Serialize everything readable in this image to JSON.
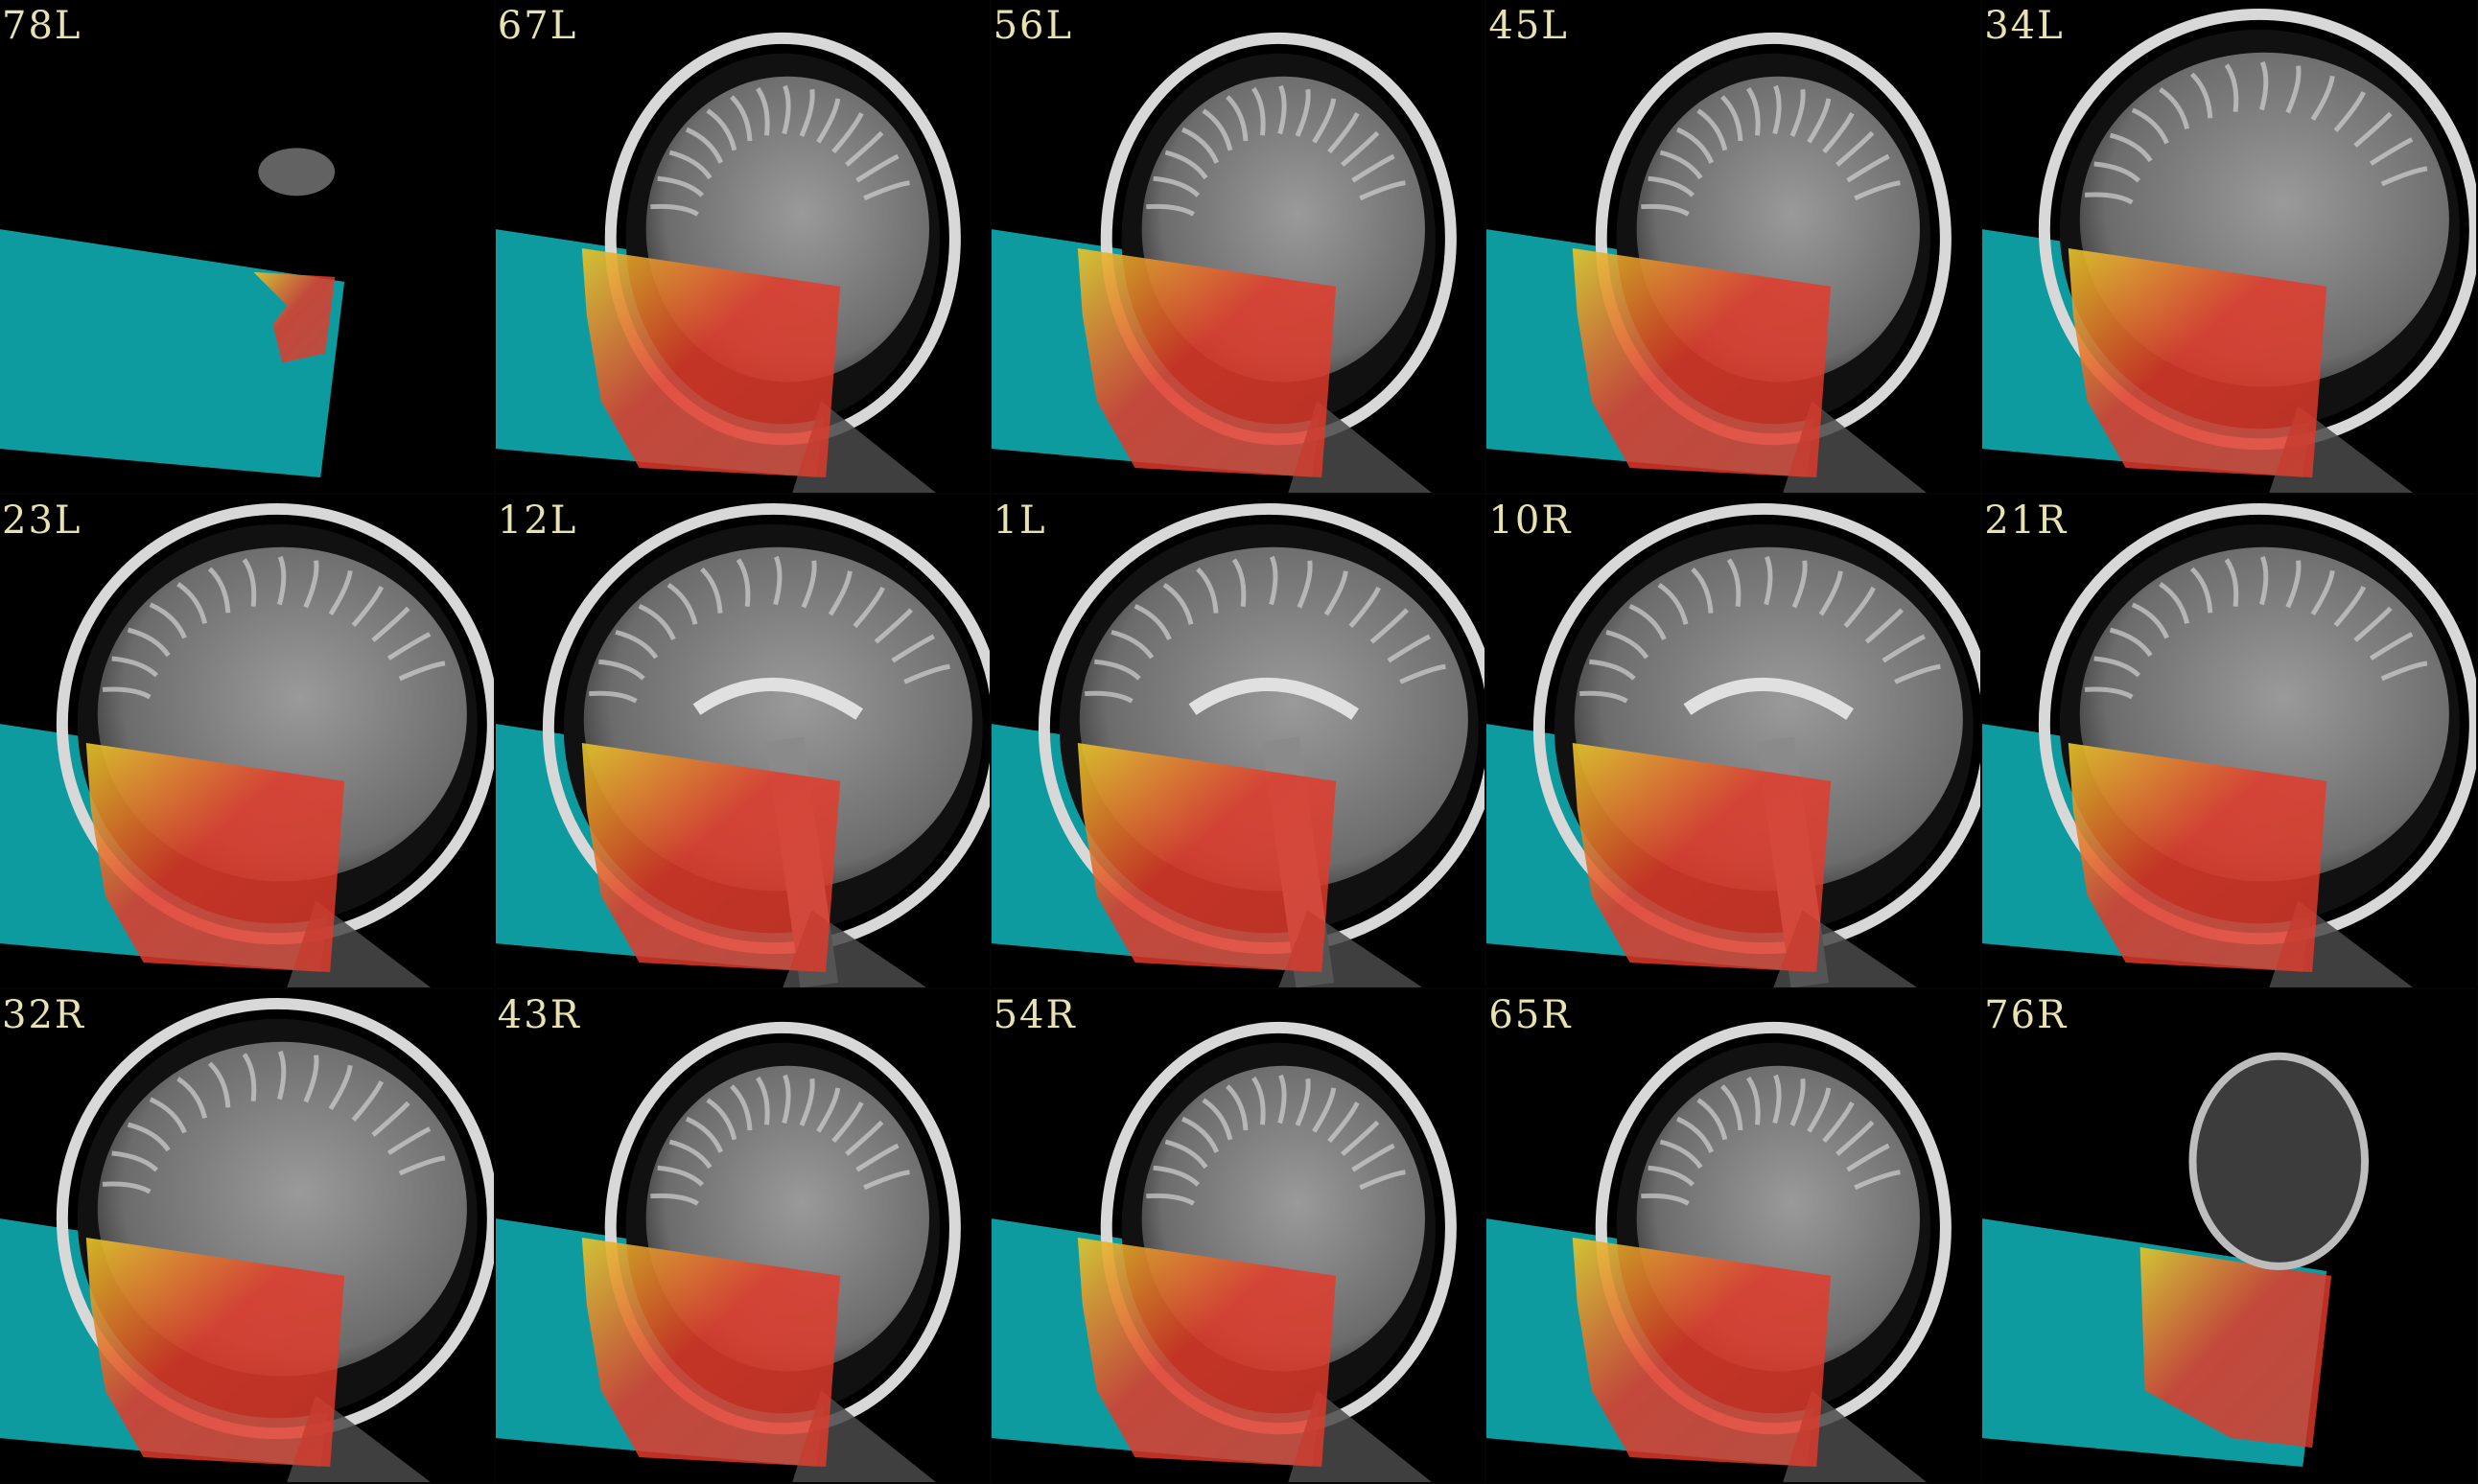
{
  "figure": {
    "description_layout": "5 x 3 montage of sagittal MRI slices with defacing mask overlay",
    "colors": {
      "background": "#000000",
      "label": "#e8e2b0",
      "mask_cyan": "#0fa3a8",
      "overlay_red": "#e23a2a",
      "overlay_yellow": "#e6c82a",
      "brain_gray": "#8a8a8a"
    },
    "panels": [
      {
        "label": "78L",
        "kind": "edge"
      },
      {
        "label": "67L",
        "kind": "lateral"
      },
      {
        "label": "56L",
        "kind": "lateral"
      },
      {
        "label": "45L",
        "kind": "lateral"
      },
      {
        "label": "34L",
        "kind": "mid"
      },
      {
        "label": "23L",
        "kind": "mid"
      },
      {
        "label": "12L",
        "kind": "medial"
      },
      {
        "label": "1L",
        "kind": "medial"
      },
      {
        "label": "10R",
        "kind": "medial"
      },
      {
        "label": "21R",
        "kind": "mid"
      },
      {
        "label": "32R",
        "kind": "mid"
      },
      {
        "label": "43R",
        "kind": "lateral"
      },
      {
        "label": "54R",
        "kind": "lateral"
      },
      {
        "label": "65R",
        "kind": "lateral"
      },
      {
        "label": "76R",
        "kind": "edge"
      }
    ]
  }
}
